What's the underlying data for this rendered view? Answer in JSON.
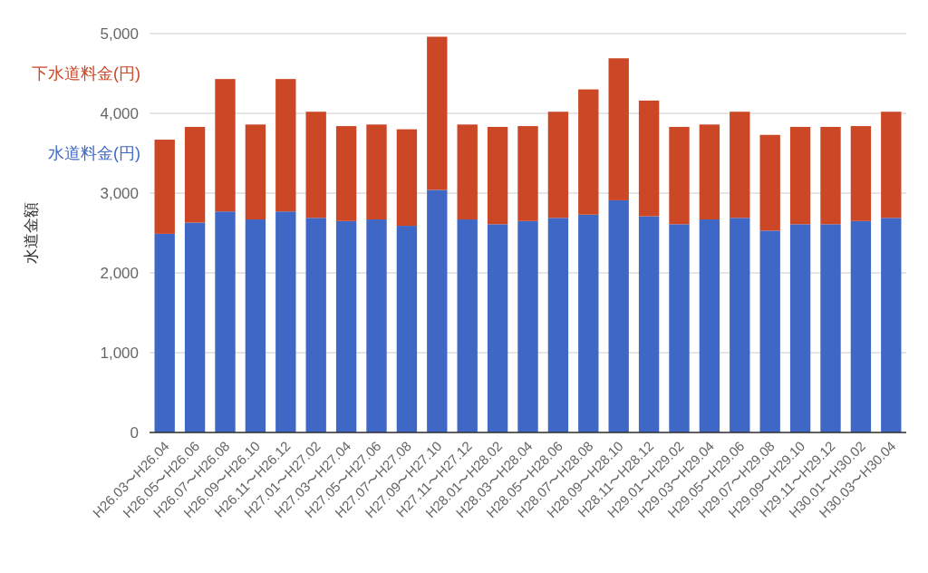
{
  "chart_data": {
    "type": "bar",
    "ylabel": "水道金額",
    "stacked": true,
    "grid": "y",
    "categories": [
      "H26.03〜H26.04",
      "H26.05〜H26.06",
      "H26.07〜H26.08",
      "H26.09〜H26.10",
      "H26.11〜H26.12",
      "H27.01〜H27.02",
      "H27.03〜H27.04",
      "H27.05〜H27.06",
      "H27.07〜H27.08",
      "H27.09〜H27.10",
      "H27.11〜H27.12",
      "H28.01〜H28.02",
      "H28.03〜H28.04",
      "H28.05〜H28.06",
      "H28.07〜H28.08",
      "H28.09〜H28.10",
      "H28.11〜H28.12",
      "H29.01〜H29.02",
      "H29.03〜H29.04",
      "H29.05〜H29.06",
      "H29.07〜H29.08",
      "H29.09〜H29.10",
      "H29.11〜H29.12",
      "H30.01〜H30.02",
      "H30.03〜H30.04"
    ],
    "series": [
      {
        "name": "水道料金(円)",
        "color": "#3f68c6",
        "values": [
          2490,
          2630,
          2770,
          2670,
          2770,
          2690,
          2650,
          2670,
          2590,
          3040,
          2670,
          2610,
          2650,
          2690,
          2730,
          2910,
          2710,
          2610,
          2670,
          2690,
          2530,
          2610,
          2610,
          2650,
          2690
        ]
      },
      {
        "name": "下水道料金(円)",
        "color": "#cc4726",
        "values": [
          1180,
          1200,
          1660,
          1190,
          1660,
          1330,
          1190,
          1190,
          1210,
          1920,
          1190,
          1220,
          1190,
          1330,
          1570,
          1780,
          1450,
          1220,
          1190,
          1330,
          1200,
          1220,
          1220,
          1190,
          1330
        ]
      }
    ],
    "ylim": [
      0,
      5000
    ],
    "yticks": [
      {
        "value": 0,
        "label": "0"
      },
      {
        "value": 1000,
        "label": "1,000"
      },
      {
        "value": 2000,
        "label": "2,000"
      },
      {
        "value": 3000,
        "label": "3,000"
      },
      {
        "value": 4000,
        "label": "4,000"
      },
      {
        "value": 5000,
        "label": "5,000"
      }
    ]
  }
}
